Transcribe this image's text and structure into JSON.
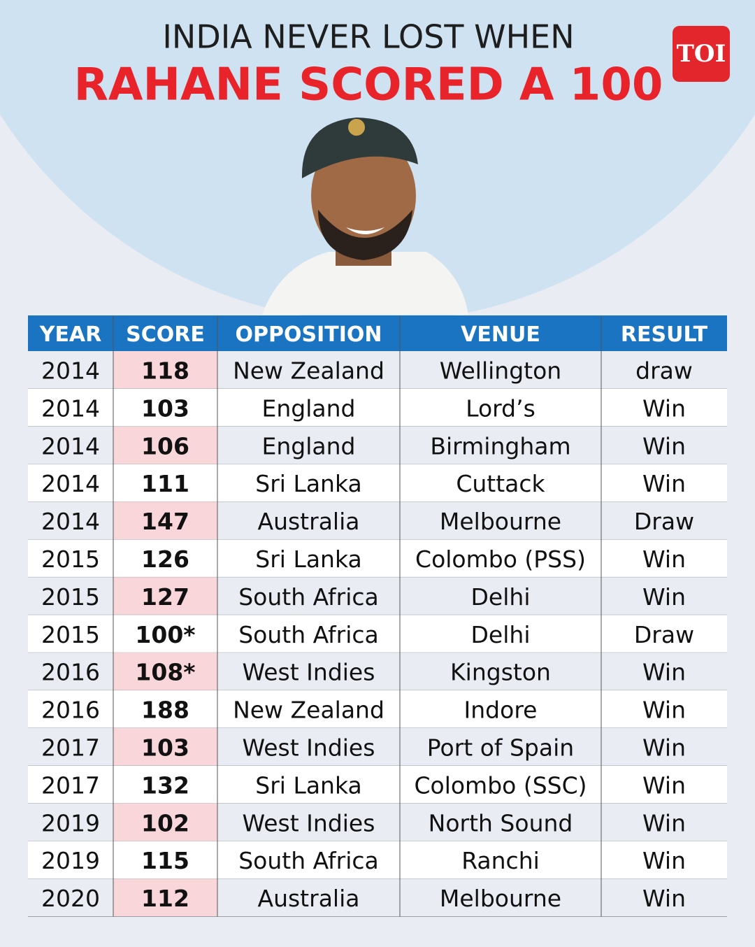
{
  "header": {
    "title_line1": "INDIA NEVER LOST WHEN",
    "title_line2": "RAHANE SCORED A 100",
    "logo": "TOI"
  },
  "table": {
    "columns": [
      "YEAR",
      "SCORE",
      "OPPOSITION",
      "VENUE",
      "RESULT"
    ],
    "rows": [
      [
        2014,
        118,
        "New Zealand",
        "Wellington",
        "draw"
      ],
      [
        2014,
        103,
        "England",
        "Lord’s",
        "Win"
      ],
      [
        2014,
        106,
        "England",
        "Birmingham",
        "Win"
      ],
      [
        2014,
        111,
        "Sri Lanka",
        "Cuttack",
        "Win"
      ],
      [
        2014,
        147,
        "Australia",
        "Melbourne",
        "Draw"
      ],
      [
        2015,
        126,
        "Sri Lanka",
        "Colombo (PSS)",
        "Win"
      ],
      [
        2015,
        127,
        "South Africa",
        "Delhi",
        "Win"
      ],
      [
        2015,
        "100*",
        "South Africa",
        "Delhi",
        "Draw"
      ],
      [
        2016,
        "108*",
        "West Indies",
        "Kingston",
        "Win"
      ],
      [
        2016,
        188,
        "New Zealand",
        "Indore",
        "Win"
      ],
      [
        2017,
        103,
        "West Indies",
        "Port of Spain",
        "Win"
      ],
      [
        2017,
        132,
        "Sri Lanka",
        "Colombo (SSC)",
        "Win"
      ],
      [
        2019,
        102,
        "West Indies",
        "North Sound",
        "Win"
      ],
      [
        2019,
        115,
        "South Africa",
        "Ranchi",
        "Win"
      ],
      [
        2020,
        112,
        "Australia",
        "Melbourne",
        "Win"
      ]
    ]
  }
}
